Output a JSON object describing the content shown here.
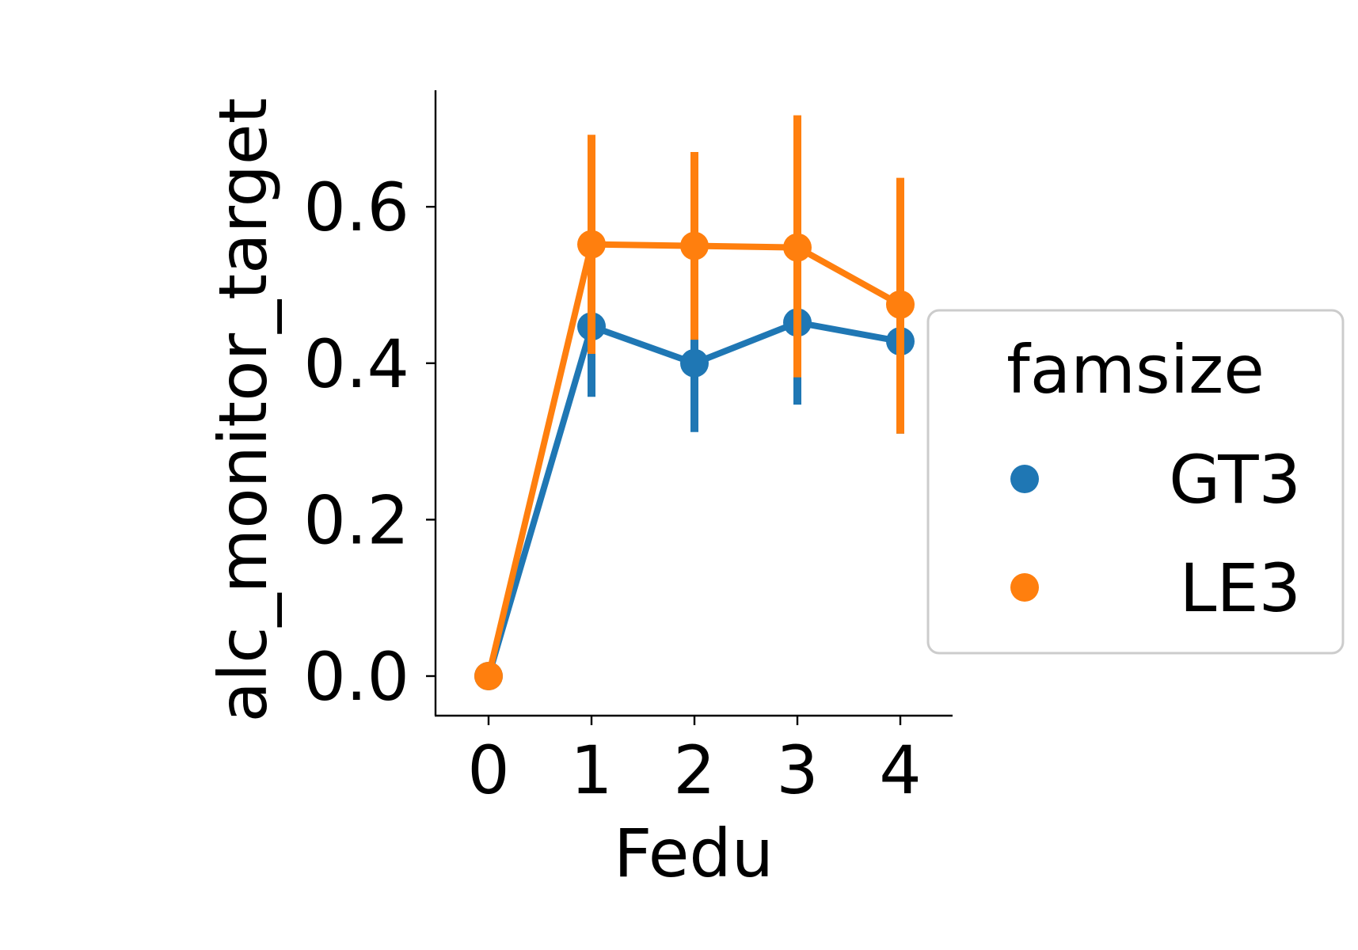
{
  "chart_data": {
    "type": "line",
    "title": "",
    "xlabel": "Fedu",
    "ylabel": "alc_monitor_target",
    "categories": [
      "0",
      "1",
      "2",
      "3",
      "4"
    ],
    "ylim": [
      -0.05,
      0.75
    ],
    "yticks": [
      0.0,
      0.2,
      0.4,
      0.6
    ],
    "ytick_labels": [
      "0.0",
      "0.2",
      "0.4",
      "0.6"
    ],
    "grid": false,
    "legend": {
      "title": "famsize",
      "placement": "center-right"
    },
    "series": [
      {
        "name": "GT3",
        "color": "#1f77b4",
        "values": [
          0.0,
          0.447,
          0.4,
          0.452,
          0.428
        ],
        "ci_low": [
          0.0,
          0.357,
          0.312,
          0.347,
          0.31
        ],
        "ci_high": [
          0.0,
          0.538,
          0.487,
          0.555,
          0.545
        ]
      },
      {
        "name": "LE3",
        "color": "#ff7f0e",
        "values": [
          0.0,
          0.552,
          0.55,
          0.548,
          0.475
        ],
        "ci_low": [
          0.0,
          0.412,
          0.43,
          0.382,
          0.31
        ],
        "ci_high": [
          0.0,
          0.692,
          0.67,
          0.717,
          0.637
        ]
      }
    ]
  }
}
